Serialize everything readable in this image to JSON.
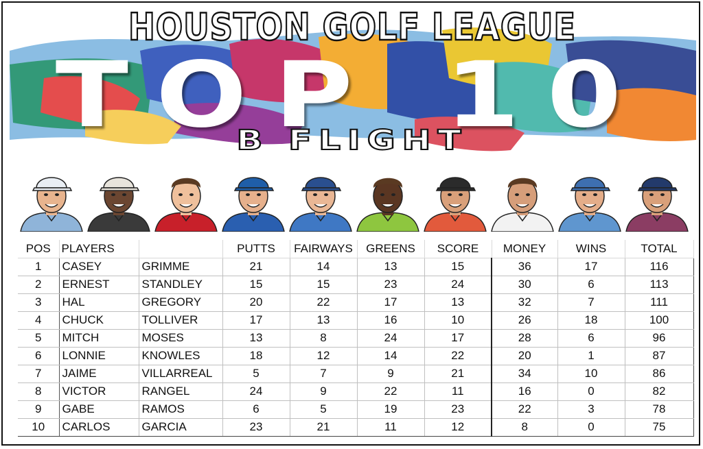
{
  "banner": {
    "league": "HOUSTON GOLF LEAGUE",
    "headline": "TOP 10",
    "flight": "B FLIGHT"
  },
  "avatars": [
    {
      "name": "avatar-1",
      "cap": "#e9eef4",
      "shirt": "#8fb4d9",
      "skin": "#e8b48e"
    },
    {
      "name": "avatar-2",
      "cap": "#e8e4dc",
      "shirt": "#3a3a3a",
      "skin": "#6b4631"
    },
    {
      "name": "avatar-3",
      "cap": "none",
      "shirt": "#c8202a",
      "skin": "#efc09c"
    },
    {
      "name": "avatar-4",
      "cap": "#1f5ea8",
      "shirt": "#2a5fb0",
      "skin": "#e6b08c"
    },
    {
      "name": "avatar-5",
      "cap": "#2a4f8f",
      "shirt": "#3f78c4",
      "skin": "#e9b795"
    },
    {
      "name": "avatar-6",
      "cap": "none",
      "shirt": "#8ec63f",
      "skin": "#5a3622"
    },
    {
      "name": "avatar-7",
      "cap": "#2b2b2b",
      "shirt": "#e25a3c",
      "skin": "#d9a07a"
    },
    {
      "name": "avatar-8",
      "cap": "none",
      "shirt": "#f2f2f2",
      "skin": "#d69e7a"
    },
    {
      "name": "avatar-9",
      "cap": "#3e6fb0",
      "shirt": "#5f96cf",
      "skin": "#e4ad89"
    },
    {
      "name": "avatar-10",
      "cap": "#233a6b",
      "shirt": "#8b3d63",
      "skin": "#d9a07a"
    }
  ],
  "table": {
    "headers": {
      "pos": "POS",
      "players": "PLAYERS",
      "putts": "PUTTS",
      "fairways": "FAIRWAYS",
      "greens": "GREENS",
      "score": "SCORE",
      "money": "MONEY",
      "wins": "WINS",
      "total": "TOTAL"
    },
    "rows": [
      {
        "pos": "1",
        "first": "CASEY",
        "last": "GRIMME",
        "putts": "21",
        "fairways": "14",
        "greens": "13",
        "score": "15",
        "money": "36",
        "wins": "17",
        "total": "116"
      },
      {
        "pos": "2",
        "first": "ERNEST",
        "last": "STANDLEY",
        "putts": "15",
        "fairways": "15",
        "greens": "23",
        "score": "24",
        "money": "30",
        "wins": "6",
        "total": "113"
      },
      {
        "pos": "3",
        "first": "HAL",
        "last": "GREGORY",
        "putts": "20",
        "fairways": "22",
        "greens": "17",
        "score": "13",
        "money": "32",
        "wins": "7",
        "total": "111"
      },
      {
        "pos": "4",
        "first": "CHUCK",
        "last": "TOLLIVER",
        "putts": "17",
        "fairways": "13",
        "greens": "16",
        "score": "10",
        "money": "26",
        "wins": "18",
        "total": "100"
      },
      {
        "pos": "5",
        "first": "MITCH",
        "last": "MOSES",
        "putts": "13",
        "fairways": "8",
        "greens": "24",
        "score": "17",
        "money": "28",
        "wins": "6",
        "total": "96"
      },
      {
        "pos": "6",
        "first": "LONNIE",
        "last": "KNOWLES",
        "putts": "18",
        "fairways": "12",
        "greens": "14",
        "score": "22",
        "money": "20",
        "wins": "1",
        "total": "87"
      },
      {
        "pos": "7",
        "first": "JAIME",
        "last": "VILLARREAL",
        "putts": "5",
        "fairways": "7",
        "greens": "9",
        "score": "21",
        "money": "34",
        "wins": "10",
        "total": "86"
      },
      {
        "pos": "8",
        "first": "VICTOR",
        "last": "RANGEL",
        "putts": "24",
        "fairways": "9",
        "greens": "22",
        "score": "11",
        "money": "16",
        "wins": "0",
        "total": "82"
      },
      {
        "pos": "9",
        "first": "GABE",
        "last": "RAMOS",
        "putts": "6",
        "fairways": "5",
        "greens": "19",
        "score": "23",
        "money": "22",
        "wins": "3",
        "total": "78"
      },
      {
        "pos": "10",
        "first": "CARLOS",
        "last": "GARCIA",
        "putts": "23",
        "fairways": "21",
        "greens": "11",
        "score": "12",
        "money": "8",
        "wins": "0",
        "total": "75"
      }
    ]
  }
}
